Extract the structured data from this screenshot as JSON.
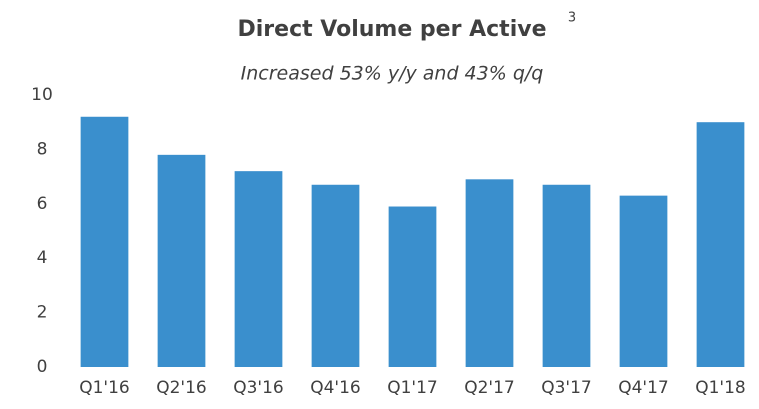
{
  "chart_data": {
    "type": "bar",
    "title": "Direct Volume per Active",
    "title_superscript": "3",
    "subtitle": "Increased 53% y/y and 43% q/q",
    "categories": [
      "Q1'16",
      "Q2'16",
      "Q3'16",
      "Q4'16",
      "Q1'17",
      "Q2'17",
      "Q3'17",
      "Q4'17",
      "Q1'18"
    ],
    "values": [
      9.2,
      7.8,
      7.2,
      6.7,
      5.9,
      6.9,
      6.7,
      6.3,
      9.0
    ],
    "color": "#3a8fcd",
    "ylim": [
      0,
      10
    ],
    "yticks": [
      0,
      2,
      4,
      6,
      8,
      10
    ],
    "grid": false
  }
}
